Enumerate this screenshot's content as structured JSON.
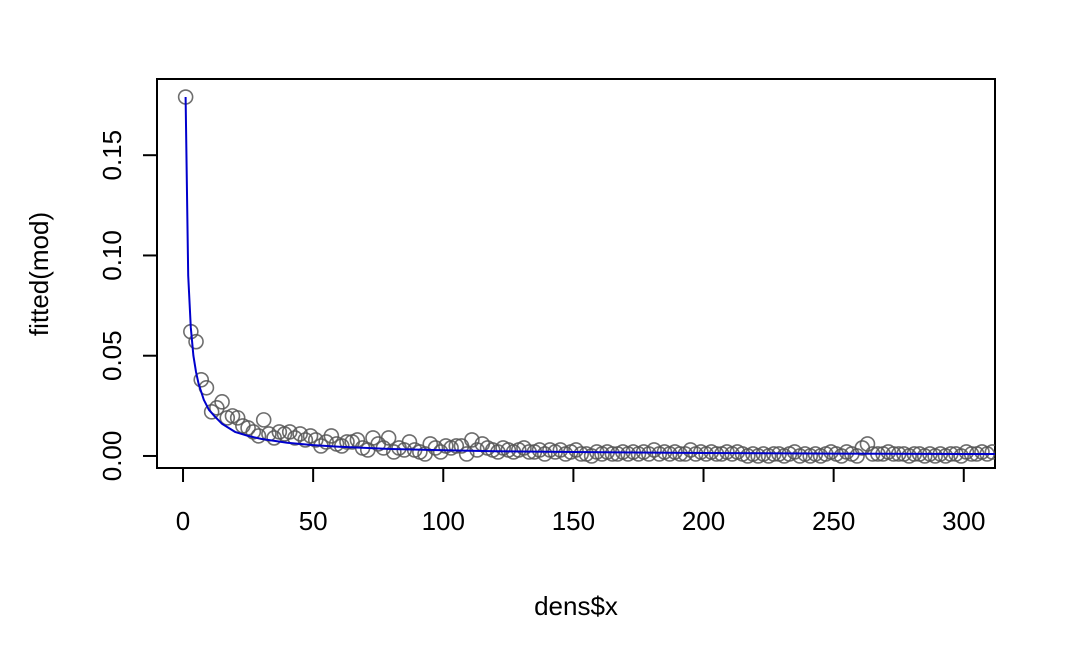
{
  "chart_data": {
    "type": "scatter",
    "xlabel": "dens$x",
    "ylabel": "fitted(mod)",
    "xlim": [
      -10,
      312
    ],
    "ylim": [
      -0.006,
      0.188
    ],
    "x_ticks": [
      0,
      50,
      100,
      150,
      200,
      250,
      300
    ],
    "y_ticks": [
      0.0,
      0.05,
      0.1,
      0.15
    ],
    "x_tick_labels": [
      "0",
      "50",
      "100",
      "150",
      "200",
      "250",
      "300"
    ],
    "y_tick_labels": [
      "0.00",
      "0.05",
      "0.10",
      "0.15"
    ],
    "grid": false,
    "colors": {
      "points": "#555555",
      "fit_line": "#0000cc",
      "frame": "#000000"
    },
    "series": [
      {
        "kind": "points",
        "x": [
          1,
          3,
          5,
          7,
          9,
          11,
          13,
          15,
          17,
          19,
          21,
          23,
          25,
          27,
          29,
          31,
          33,
          35,
          37,
          39,
          41,
          43,
          45,
          47,
          49,
          51,
          53,
          55,
          57,
          59,
          61,
          63,
          65,
          67,
          69,
          71,
          73,
          75,
          77,
          79,
          81,
          83,
          85,
          87,
          89,
          91,
          93,
          95,
          97,
          99,
          101,
          103,
          105,
          107,
          109,
          111,
          113,
          115,
          117,
          119,
          121,
          123,
          125,
          127,
          129,
          131,
          133,
          135,
          137,
          139,
          141,
          143,
          145,
          147,
          149,
          151,
          153,
          155,
          157,
          159,
          161,
          163,
          165,
          167,
          169,
          171,
          173,
          175,
          177,
          179,
          181,
          183,
          185,
          187,
          189,
          191,
          193,
          195,
          197,
          199,
          201,
          203,
          205,
          207,
          209,
          211,
          213,
          215,
          217,
          219,
          221,
          223,
          225,
          227,
          229,
          231,
          233,
          235,
          237,
          239,
          241,
          243,
          245,
          247,
          249,
          251,
          253,
          255,
          257,
          259,
          261,
          263,
          265,
          267,
          269,
          271,
          273,
          275,
          277,
          279,
          281,
          283,
          285,
          287,
          289,
          291,
          293,
          295,
          297,
          299,
          301,
          303,
          305,
          307,
          309,
          311
        ],
        "y": [
          0.179,
          0.062,
          0.057,
          0.038,
          0.034,
          0.022,
          0.024,
          0.027,
          0.019,
          0.02,
          0.019,
          0.015,
          0.014,
          0.012,
          0.01,
          0.018,
          0.011,
          0.009,
          0.012,
          0.011,
          0.012,
          0.009,
          0.011,
          0.008,
          0.01,
          0.008,
          0.005,
          0.007,
          0.01,
          0.006,
          0.005,
          0.007,
          0.007,
          0.008,
          0.004,
          0.003,
          0.009,
          0.006,
          0.004,
          0.009,
          0.002,
          0.004,
          0.003,
          0.007,
          0.003,
          0.002,
          0.001,
          0.006,
          0.004,
          0.002,
          0.005,
          0.004,
          0.005,
          0.005,
          0.001,
          0.008,
          0.003,
          0.006,
          0.004,
          0.003,
          0.002,
          0.004,
          0.003,
          0.002,
          0.003,
          0.004,
          0.002,
          0.002,
          0.003,
          0.001,
          0.003,
          0.002,
          0.003,
          0.001,
          0.002,
          0.003,
          0.001,
          0.001,
          0.0,
          0.002,
          0.001,
          0.002,
          0.001,
          0.001,
          0.002,
          0.001,
          0.002,
          0.001,
          0.002,
          0.001,
          0.003,
          0.001,
          0.002,
          0.001,
          0.002,
          0.001,
          0.001,
          0.003,
          0.001,
          0.002,
          0.001,
          0.002,
          0.001,
          0.001,
          0.002,
          0.001,
          0.002,
          0.001,
          0.0,
          0.001,
          0.0,
          0.001,
          0.0,
          0.001,
          0.001,
          0.0,
          0.001,
          0.002,
          0.0,
          0.001,
          0.0,
          0.001,
          0.0,
          0.001,
          0.002,
          0.001,
          0.0,
          0.002,
          0.001,
          0.0,
          0.004,
          0.006,
          0.001,
          0.001,
          0.001,
          0.002,
          0.001,
          0.001,
          0.001,
          0.0,
          0.001,
          0.001,
          0.0,
          0.001,
          0.0,
          0.001,
          0.0,
          0.001,
          0.001,
          0.0,
          0.002,
          0.001,
          0.001,
          0.002,
          0.001,
          0.002
        ]
      },
      {
        "kind": "fit_line",
        "x": [
          1,
          2,
          3,
          4,
          5,
          6,
          8,
          10,
          12,
          15,
          20,
          25,
          30,
          40,
          50,
          60,
          70,
          80,
          100,
          120,
          150,
          200,
          250,
          300,
          312
        ],
        "y": [
          0.179,
          0.09,
          0.064,
          0.05,
          0.042,
          0.036,
          0.028,
          0.023,
          0.02,
          0.016,
          0.012,
          0.01,
          0.0085,
          0.0066,
          0.0054,
          0.0046,
          0.004,
          0.0035,
          0.0029,
          0.0024,
          0.002,
          0.0015,
          0.0012,
          0.001,
          0.001
        ]
      }
    ]
  }
}
